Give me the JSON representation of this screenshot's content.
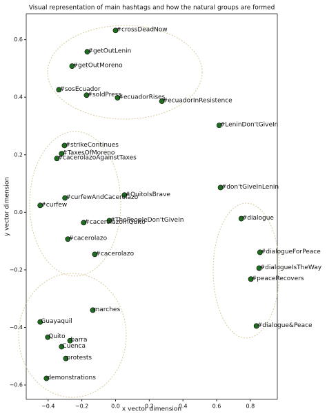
{
  "chart_data": {
    "type": "scatter",
    "title": "Visual representation of main hashtags and how the natural groups are formed",
    "x_label": "x vector dimension",
    "y_label": "y vector dimension",
    "xlim": [
      -0.53,
      0.96
    ],
    "ylim": [
      -0.65,
      0.69
    ],
    "xticks": [
      {
        "value": -0.4,
        "label": "−0.4"
      },
      {
        "value": -0.2,
        "label": "−0.2"
      },
      {
        "value": 0,
        "label": "0.0"
      },
      0.2,
      0.4,
      0.6,
      0.8
    ],
    "yticks": [
      {
        "value": -0.6,
        "label": "−0.6"
      },
      {
        "value": -0.4,
        "label": "−0.4"
      },
      {
        "value": -0.2,
        "label": "−0.2"
      },
      {
        "value": 0,
        "label": "0.0"
      },
      0.2,
      0.4,
      0.6
    ],
    "color": "#1f6e1f",
    "point_labels": [
      "#crossDeadNow",
      "#getOutLenin",
      "#getOutMoreno",
      "#sosEcuador",
      "#soldPress",
      "#ecuadorRises",
      "#ecuadorInResistence",
      "#LeninDon'tGiveIn",
      "#strikeContinues",
      "#TaxesOfMoreno",
      "#cacerolazoAgainstTaxes",
      "#QuitoIsBrave",
      "#don'tGiveInLenin",
      "#curfewAndCacerolazo",
      "#curfew",
      "#ThePeopleDon'tGiveIn",
      "#cacerolazoInQuito",
      "#dialogue",
      "#cacerolazo",
      "#cacerolazo",
      "#dialogueForPeace",
      "#dialogueIsTheWay",
      "#peaceRecovers",
      "marches",
      "#dialogue&Peace",
      "Guayaquil",
      "Quito",
      "barra",
      "Cuenca",
      "protests",
      "demonstrations"
    ],
    "x": [
      0.0,
      -0.168,
      -0.258,
      -0.336,
      -0.172,
      0.012,
      0.275,
      0.615,
      -0.303,
      -0.32,
      -0.348,
      0.053,
      0.623,
      -0.3,
      -0.447,
      -0.037,
      -0.189,
      0.746,
      -0.283,
      -0.123,
      0.857,
      0.852,
      0.803,
      -0.135,
      0.836,
      -0.447,
      -0.402,
      -0.27,
      -0.32,
      -0.295,
      -0.41
    ],
    "y": [
      0.632,
      0.558,
      0.508,
      0.426,
      0.407,
      0.398,
      0.386,
      0.302,
      0.232,
      0.204,
      0.187,
      0.06,
      0.086,
      0.05,
      0.024,
      -0.029,
      -0.036,
      -0.022,
      -0.093,
      -0.146,
      -0.139,
      -0.194,
      -0.232,
      -0.34,
      -0.395,
      -0.381,
      -0.434,
      -0.446,
      -0.467,
      -0.508,
      -0.577
    ]
  }
}
